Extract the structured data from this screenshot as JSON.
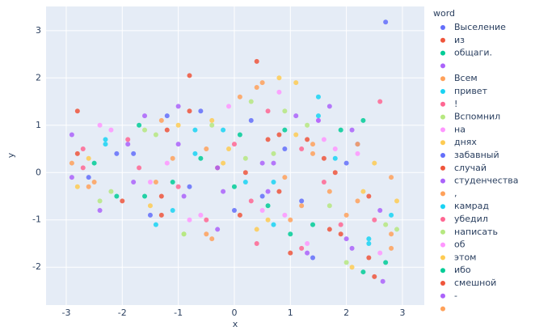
{
  "chart_data": {
    "type": "scatter",
    "x_label": "x",
    "y_label": "y",
    "legend_title": "word",
    "xlim": [
      -3.36,
      3.39
    ],
    "ylim": [
      -2.8,
      3.51
    ],
    "xticks": [
      -3,
      -2,
      -1,
      0,
      1,
      2,
      3
    ],
    "yticks": [
      -2,
      -1,
      0,
      1,
      2,
      3
    ],
    "grid": true,
    "legend": "right",
    "series": [
      {
        "name": "Выселение",
        "color": "#636efa",
        "x": [
          -2.1,
          -0.8,
          0.3,
          1.2,
          2.0,
          2.7,
          -1.5,
          0.9
        ],
        "values": [
          0.4,
          -0.3,
          1.1,
          -0.6,
          0.2,
          3.18,
          -0.9,
          0.5
        ]
      },
      {
        "name": "из",
        "color": "#EF553B",
        "x": [
          -2.8,
          -1.2,
          0.4,
          0.8,
          1.7,
          2.4,
          -0.3,
          1.3
        ],
        "values": [
          1.3,
          0.9,
          2.35,
          -0.4,
          -1.2,
          -1.8,
          0.1,
          0.7
        ]
      },
      {
        "name": "общаги.",
        "color": "#00cc96",
        "x": [
          -2.5,
          -1.6,
          0.1,
          1.0,
          1.9,
          2.3,
          -0.6,
          0.6
        ],
        "values": [
          0.2,
          -0.5,
          0.8,
          -1.3,
          0.9,
          -2.1,
          0.3,
          -0.7
        ]
      },
      {
        "name": null,
        "color": "#ab63fa",
        "x": [
          -2.9,
          -1.9,
          -0.2,
          1.1,
          2.1,
          2.6,
          -1.0,
          0.5
        ],
        "values": [
          -0.1,
          0.6,
          -0.4,
          1.2,
          -1.6,
          -0.8,
          1.4,
          0.2
        ]
      },
      {
        "name": "Всем",
        "color": "#FFA15A",
        "x": [
          -2.6,
          -1.3,
          0.5,
          1.4,
          2.2,
          2.8,
          -0.4,
          0.9
        ],
        "values": [
          -0.3,
          1.1,
          1.9,
          0.4,
          -0.6,
          -1.3,
          -1.4,
          -0.1
        ]
      },
      {
        "name": "привет",
        "color": "#19d3f3",
        "x": [
          -2.3,
          -1.1,
          0.2,
          1.5,
          2.4,
          -0.7,
          0.7,
          1.8
        ],
        "values": [
          0.7,
          -0.8,
          -0.2,
          1.6,
          -1.5,
          0.9,
          -1.1,
          0.3
        ]
      },
      {
        "name": "!",
        "color": "#FF6692",
        "x": [
          -2.7,
          -1.7,
          -0.5,
          0.6,
          1.6,
          2.5,
          0.0,
          1.2
        ],
        "values": [
          0.5,
          0.1,
          -1.0,
          1.3,
          -0.2,
          -1.0,
          0.6,
          -1.6
        ]
      },
      {
        "name": "Вспомнил",
        "color": "#B6E880",
        "x": [
          -2.4,
          -0.9,
          0.7,
          1.3,
          2.0,
          2.7,
          -1.4,
          0.3
        ],
        "values": [
          -0.6,
          -1.3,
          0.4,
          1.0,
          -1.9,
          -1.1,
          0.8,
          1.5
        ]
      },
      {
        "name": "на",
        "color": "#FF97FF",
        "x": [
          -2.2,
          -1.5,
          -0.1,
          0.9,
          1.8,
          2.6,
          -0.8,
          1.5
        ],
        "values": [
          0.9,
          -0.2,
          1.4,
          -0.9,
          0.5,
          -1.7,
          -1.0,
          1.1
        ]
      },
      {
        "name": "днях",
        "color": "#FECB52",
        "x": [
          -2.8,
          -1.0,
          0.4,
          1.1,
          2.3,
          2.9,
          -0.2,
          0.8
        ],
        "values": [
          -0.3,
          1.0,
          -1.2,
          1.9,
          -0.4,
          -0.6,
          0.2,
          2.0
        ]
      },
      {
        "name": "забавный",
        "color": "#636efa",
        "x": [
          -2.6,
          -1.8,
          -0.6,
          0.5,
          1.4,
          2.2,
          -1.2,
          0.0
        ],
        "values": [
          -0.1,
          0.4,
          1.3,
          -0.5,
          -1.8,
          0.6,
          1.2,
          -0.8
        ]
      },
      {
        "name": "случай",
        "color": "#EF553B",
        "x": [
          -2.0,
          -1.3,
          -0.8,
          0.8,
          1.6,
          2.5,
          0.2,
          1.9
        ],
        "values": [
          -0.6,
          -0.9,
          2.05,
          0.8,
          0.3,
          -2.2,
          0.0,
          -1.3
        ]
      },
      {
        "name": "студенчества",
        "color": "#ab63fa",
        "x": [
          -2.9,
          -1.6,
          -0.3,
          0.6,
          1.3,
          2.1,
          -0.9,
          1.7
        ],
        "values": [
          0.8,
          1.2,
          0.1,
          -0.4,
          -1.7,
          0.9,
          -0.5,
          1.4
        ]
      },
      {
        "name": ",",
        "color": "#FFA15A",
        "x": [
          -2.5,
          -1.1,
          0.1,
          1.0,
          2.0,
          2.8,
          -0.5,
          1.4
        ],
        "values": [
          -0.2,
          0.3,
          1.6,
          -1.0,
          -0.9,
          -0.1,
          -1.3,
          0.6
        ]
      },
      {
        "name": "камрад",
        "color": "#19d3f3",
        "x": [
          -2.3,
          -1.4,
          -0.2,
          0.7,
          1.5,
          2.4,
          -0.7,
          2.8
        ],
        "values": [
          0.6,
          -1.1,
          0.9,
          -0.2,
          1.2,
          -1.4,
          0.4,
          -0.9
        ]
      },
      {
        "name": "убедил",
        "color": "#FF6692",
        "x": [
          -2.7,
          -1.9,
          0.3,
          1.2,
          1.9,
          2.6,
          -1.0,
          0.4
        ],
        "values": [
          0.1,
          0.7,
          -0.6,
          0.5,
          -1.1,
          1.5,
          -0.3,
          -1.5
        ]
      },
      {
        "name": "написать",
        "color": "#B6E880",
        "x": [
          -2.2,
          -0.9,
          -0.4,
          0.9,
          1.7,
          2.9,
          -1.6,
          0.2
        ],
        "values": [
          -0.4,
          -1.3,
          1.0,
          1.3,
          -0.7,
          -1.2,
          0.9,
          0.3
        ]
      },
      {
        "name": "об",
        "color": "#FF97FF",
        "x": [
          -2.4,
          -1.2,
          0.5,
          1.3,
          2.2,
          -0.6,
          0.8,
          1.6
        ],
        "values": [
          1.0,
          0.2,
          -0.8,
          -1.5,
          0.4,
          -0.9,
          1.7,
          0.7
        ]
      },
      {
        "name": "этом",
        "color": "#FECB52",
        "x": [
          -2.6,
          -1.5,
          -0.1,
          1.1,
          2.1,
          2.5,
          -0.4,
          0.6
        ],
        "values": [
          0.3,
          -0.7,
          0.5,
          0.8,
          -2.0,
          0.2,
          1.1,
          -1.0
        ]
      },
      {
        "name": "ибо",
        "color": "#00cc96",
        "x": [
          -2.1,
          -1.7,
          0.0,
          1.4,
          2.3,
          2.7,
          -1.1,
          0.9
        ],
        "values": [
          -0.5,
          1.0,
          -0.3,
          -1.1,
          1.1,
          -1.9,
          -0.2,
          0.9
        ]
      },
      {
        "name": "смешной",
        "color": "#EF553B",
        "x": [
          -2.8,
          -1.3,
          0.6,
          1.0,
          1.8,
          2.4,
          -0.8,
          0.1
        ],
        "values": [
          0.4,
          -0.5,
          0.7,
          -1.7,
          0.0,
          -0.5,
          1.3,
          -0.9
        ]
      },
      {
        "name": "-",
        "color": "#ab63fa",
        "x": [
          -2.4,
          -1.0,
          -0.3,
          1.5,
          2.0,
          2.65,
          -1.8,
          0.7
        ],
        "values": [
          -0.8,
          0.6,
          -1.2,
          1.1,
          -1.4,
          -2.3,
          -0.2,
          0.2
        ]
      },
      {
        "name": null,
        "color": "#FFA15A",
        "x": [
          -2.9,
          -1.4,
          0.4,
          1.2,
          2.2,
          2.8,
          -0.5,
          1.7
        ],
        "values": [
          0.2,
          -0.2,
          1.8,
          -0.7,
          0.6,
          -1.6,
          0.5,
          -0.4
        ]
      }
    ]
  }
}
